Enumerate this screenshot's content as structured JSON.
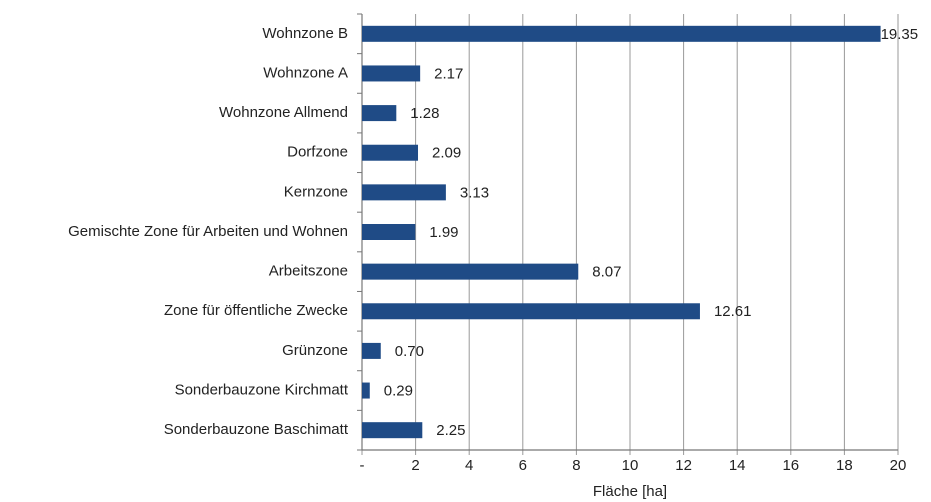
{
  "chart_data": {
    "type": "bar",
    "orientation": "horizontal",
    "x_label": "Fläche [ha]",
    "categories": [
      "Wohnzone B",
      "Wohnzone A",
      "Wohnzone Allmend",
      "Dorfzone",
      "Kernzone",
      "Gemischte Zone für Arbeiten und Wohnen",
      "Arbeitszone",
      "Zone für öffentliche Zwecke",
      "Grünzone",
      "Sonderbauzone Kirchmatt",
      "Sonderbauzone Baschimatt"
    ],
    "values": [
      19.35,
      2.17,
      1.28,
      2.09,
      3.13,
      1.99,
      8.07,
      12.61,
      0.7,
      0.29,
      2.25
    ],
    "value_labels": [
      "19.35",
      "2.17",
      "1.28",
      "2.09",
      "3.13",
      "1.99",
      "8.07",
      "12.61",
      "0.70",
      "0.29",
      "2.25"
    ],
    "color": "#1f4b86",
    "xlim": [
      0,
      20
    ],
    "xticks": [
      {
        "value": 0,
        "label": "-"
      },
      2,
      4,
      6,
      8,
      10,
      12,
      14,
      16,
      18,
      20
    ],
    "grid": true
  }
}
